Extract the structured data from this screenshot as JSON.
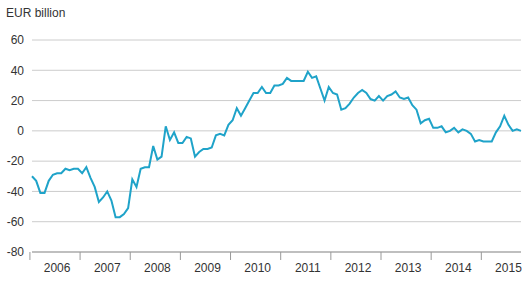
{
  "chart_data": {
    "type": "line",
    "y_label": "EUR billion",
    "color": "#1fa3c9",
    "grid": true,
    "ylim": [
      -80,
      60
    ],
    "yticks": [
      -80,
      -60,
      -40,
      -20,
      0,
      20,
      40,
      60
    ],
    "categories": [
      null,
      null,
      null,
      null,
      null,
      null,
      "2006",
      null,
      null,
      null,
      null,
      null,
      null,
      null,
      null,
      null,
      null,
      null,
      "2007",
      null,
      null,
      null,
      null,
      null,
      null,
      null,
      null,
      null,
      null,
      null,
      "2008",
      null,
      null,
      null,
      null,
      null,
      null,
      null,
      null,
      null,
      null,
      null,
      "2009",
      null,
      null,
      null,
      null,
      null,
      null,
      null,
      null,
      null,
      null,
      null,
      "2010",
      null,
      null,
      null,
      null,
      null,
      null,
      null,
      null,
      null,
      null,
      null,
      "2011",
      null,
      null,
      null,
      null,
      null,
      null,
      null,
      null,
      null,
      null,
      null,
      "2012",
      null,
      null,
      null,
      null,
      null,
      null,
      null,
      null,
      null,
      null,
      null,
      "2013",
      null,
      null,
      null,
      null,
      null,
      null,
      null,
      null,
      null,
      null,
      null,
      "2014",
      null,
      null,
      null,
      null,
      null,
      null,
      null,
      null,
      null,
      null,
      null,
      "2015",
      null,
      null,
      null
    ],
    "values": [
      -30,
      -33,
      -41,
      -41,
      -33,
      -29,
      -28,
      -28,
      -25,
      -26,
      -25,
      -25,
      -28,
      -24,
      -31,
      -37,
      -47,
      -44,
      -40,
      -46,
      -57,
      -57,
      -55,
      -51,
      -32,
      -37,
      -25,
      -24,
      -24,
      -10,
      -19,
      -17,
      3,
      -6,
      -1,
      -8,
      -8,
      -4,
      -5,
      -17,
      -14,
      -12,
      -12,
      -11,
      -3,
      -2,
      -3,
      4,
      7,
      15,
      10,
      15,
      20,
      25,
      25,
      29,
      25,
      25,
      30,
      30,
      31,
      35,
      33,
      33,
      33,
      33,
      39,
      35,
      36,
      28,
      20,
      29,
      25,
      24,
      14,
      15,
      18,
      22,
      25,
      27,
      25,
      21,
      20,
      23,
      20,
      23,
      24,
      26,
      22,
      21,
      22,
      17,
      14,
      5,
      7,
      8,
      2,
      2,
      3,
      -1,
      0,
      2,
      -1,
      1,
      0,
      -2,
      -7,
      -6,
      -7,
      -7,
      -7,
      -1,
      3,
      10,
      4,
      0,
      1,
      0
    ]
  }
}
